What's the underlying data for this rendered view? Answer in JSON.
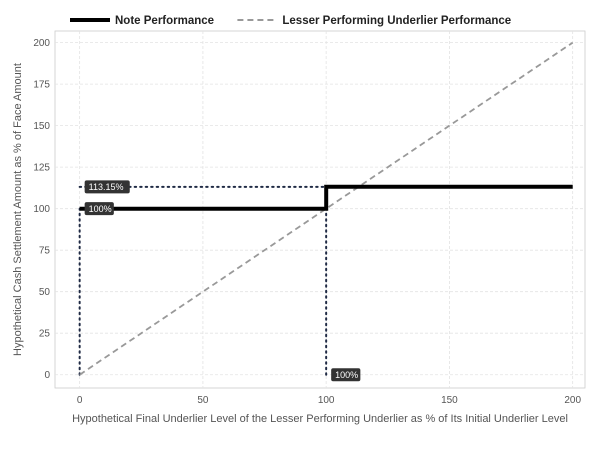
{
  "chart_data": {
    "type": "line",
    "title": "",
    "xlabel": "Hypothetical Final Underlier Level of the Lesser Performing Underlier as % of Its Initial Underlier Level",
    "ylabel": "Hypothetical Cash Settlement Amount as % of Face Amount",
    "xlim": [
      -10,
      205
    ],
    "ylim": [
      -8,
      207
    ],
    "xticks": [
      0,
      50,
      100,
      150,
      200
    ],
    "yticks": [
      0,
      25,
      50,
      75,
      100,
      125,
      150,
      175,
      200
    ],
    "grid": true,
    "legend_position": "top",
    "series": [
      {
        "name": "Note Performance",
        "style": "solid",
        "color": "#000000",
        "x": [
          0,
          100,
          100,
          200
        ],
        "y": [
          100,
          100,
          113.15,
          113.15
        ]
      },
      {
        "name": "Lesser Performing Underlier Performance",
        "style": "dashed",
        "color": "#999999",
        "x": [
          0,
          200
        ],
        "y": [
          0,
          200
        ]
      }
    ],
    "reference_lines": [
      {
        "style": "dotted",
        "color": "#1f2a44",
        "x": [
          0,
          100
        ],
        "y": [
          113.15,
          113.15
        ]
      },
      {
        "style": "dotted",
        "color": "#1f2a44",
        "x": [
          0,
          0
        ],
        "y": [
          0,
          100
        ]
      },
      {
        "style": "dotted",
        "color": "#1f2a44",
        "x": [
          100,
          100
        ],
        "y": [
          0,
          100
        ]
      }
    ],
    "annotations": [
      {
        "text": "113.15%",
        "x": 0,
        "y": 113.15
      },
      {
        "text": "100%",
        "x": 0,
        "y": 100
      },
      {
        "text": "100%",
        "x": 100,
        "y": 0
      }
    ]
  }
}
